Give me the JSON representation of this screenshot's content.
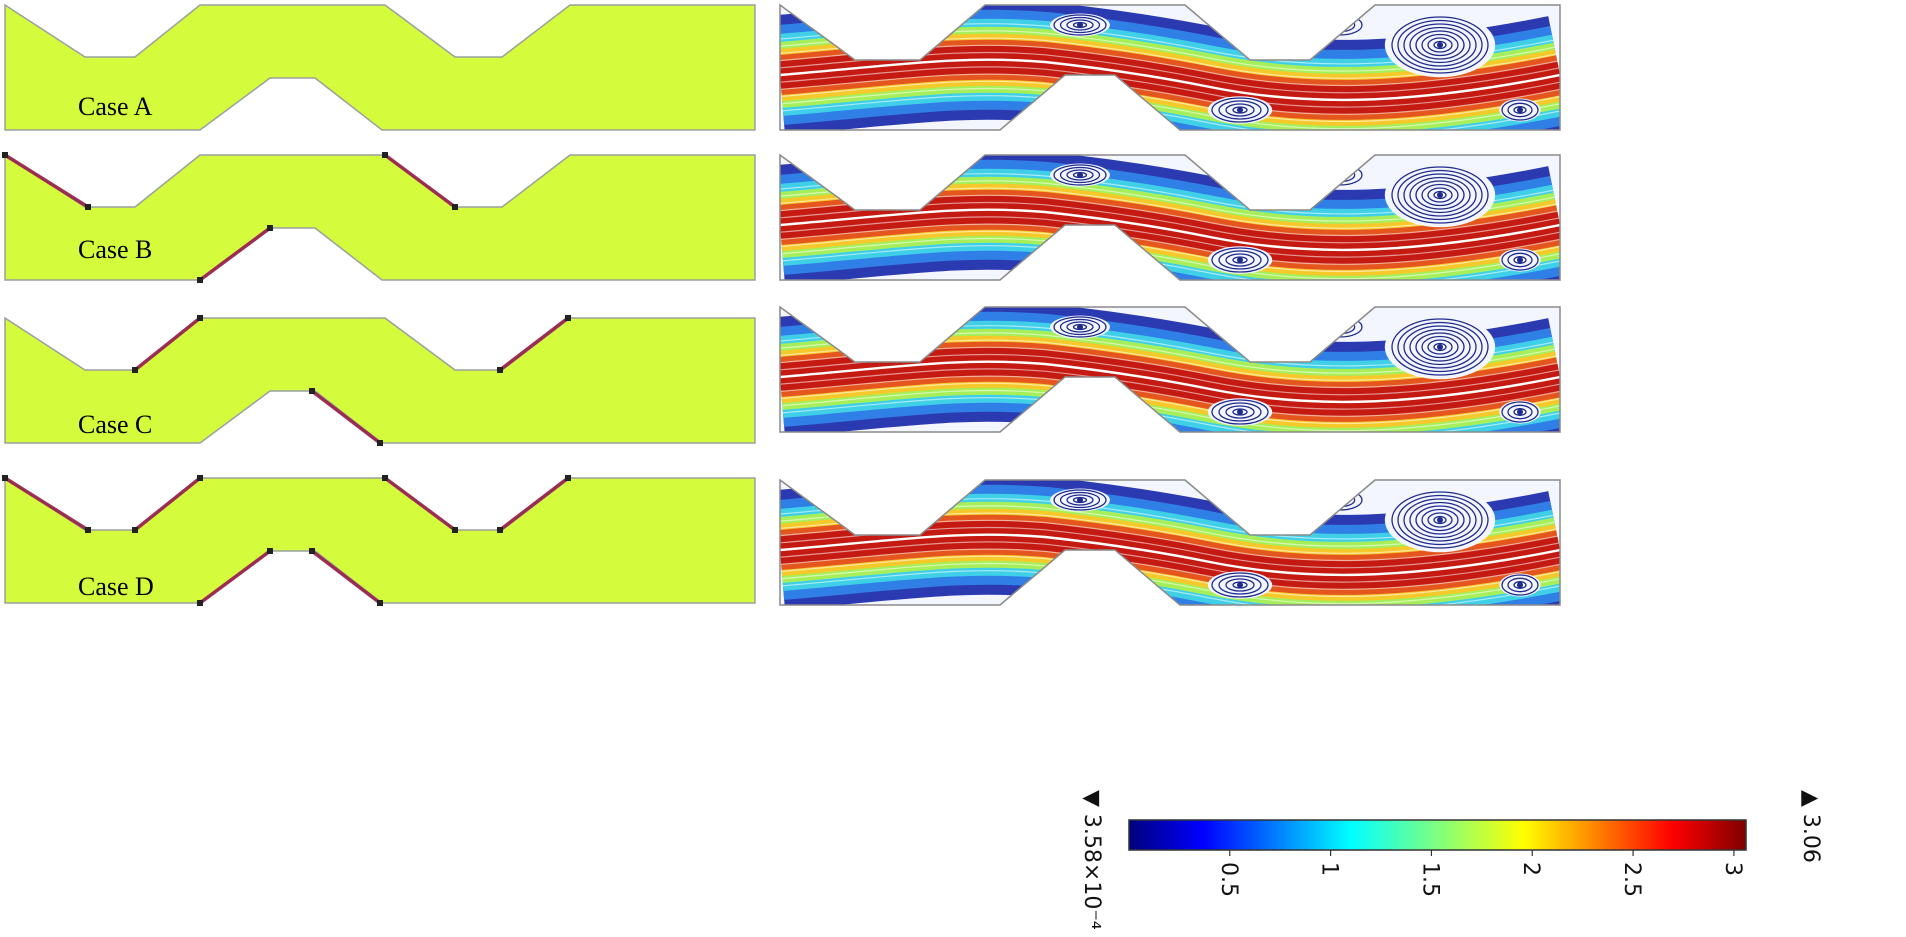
{
  "colors": {
    "domain_fill": "#d4fb3c",
    "domain_stroke": "#9aa0a0",
    "electrode": "#9b2d52",
    "streamline_slow": "#1e2a8c",
    "core_line": "#ffffff"
  },
  "cases": [
    {
      "label": "Case A",
      "electrodes": []
    },
    {
      "label": "Case B",
      "electrodes": [
        "top-left-1",
        "top-left-2",
        "bottom-left"
      ]
    },
    {
      "label": "Case C",
      "electrodes": [
        "top-right-1",
        "top-right-2",
        "bottom-right"
      ]
    },
    {
      "label": "Case D",
      "electrodes": [
        "top-left-1",
        "top-right-1",
        "top-left-2",
        "top-right-2",
        "bottom-left",
        "bottom-right"
      ]
    }
  ],
  "colorbar": {
    "colormap": "jet",
    "min_label": "▼ 3.58×10⁻⁴",
    "max_label": "▲ 3.06",
    "min": 0.000358,
    "max": 3.06,
    "ticks": [
      {
        "value": 0.5,
        "label": "0.5"
      },
      {
        "value": 1,
        "label": "1"
      },
      {
        "value": 1.5,
        "label": "1.5"
      },
      {
        "value": 2,
        "label": "2"
      },
      {
        "value": 2.5,
        "label": "2.5"
      },
      {
        "value": 3,
        "label": "3"
      }
    ]
  }
}
